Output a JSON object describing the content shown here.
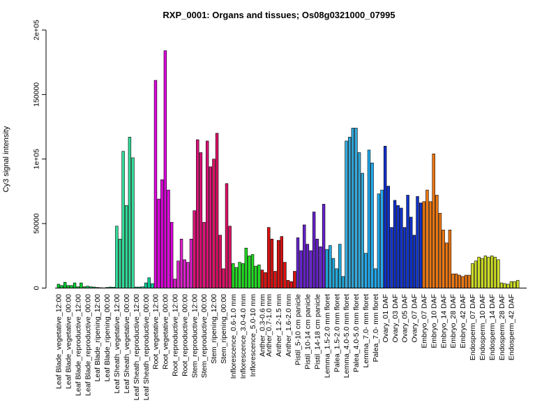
{
  "chart_data": {
    "type": "bar",
    "title": "RXP_0001: Organs and tissues; Os08g0321000_07995",
    "ylabel": "Cy3 signal intensity",
    "xlabel": "",
    "ylim": [
      0,
      200000
    ],
    "yticks": [
      {
        "value": 0,
        "label": "0"
      },
      {
        "value": 50000,
        "label": "50000"
      },
      {
        "value": 100000,
        "label": "1e+05"
      },
      {
        "value": 150000,
        "label": "150000"
      },
      {
        "value": 200000,
        "label": "2e+05"
      }
    ],
    "groups": [
      {
        "color": "#00cc33",
        "values": [
          3000,
          2000,
          4500,
          2000,
          2000,
          4000,
          1000,
          4000,
          1000
        ],
        "labels": [
          "Leaf Blade_vegetative_12:00",
          "",
          "",
          "Leaf Blade_vegetative_00:00",
          "",
          "",
          "Leaf Blade_reproductive_12:00",
          "",
          ""
        ]
      },
      {
        "color": "#00cc66",
        "values": [
          1500,
          1000,
          800,
          500,
          300,
          200,
          500,
          800,
          700
        ],
        "labels": [
          "Leaf Blade_reproductive_00:00",
          "",
          "",
          "Leaf Blade_ripening_12:00",
          "",
          "",
          "Leaf Blade_ripening_00:00",
          "",
          ""
        ]
      },
      {
        "color": "#33dd99",
        "values": [
          48000,
          38000,
          106000,
          64000,
          117000,
          101000
        ],
        "labels": [
          "Leaf Sheath_vegetative_12:00",
          "",
          "",
          "Leaf Sheath_vegetative_00:00",
          "",
          ""
        ]
      },
      {
        "color": "#00cc99",
        "values": [
          800,
          800,
          1000,
          4000,
          8000,
          3500
        ],
        "labels": [
          "Leaf Sheath_reproductive_12:00",
          "",
          "",
          "Leaf Sheath_reproductive_00:00",
          "",
          ""
        ]
      },
      {
        "color": "#dd00dd",
        "values": [
          161000,
          69000,
          84000,
          184000,
          76000,
          51000
        ],
        "labels": [
          "Root_vegetative_12:00",
          "",
          "",
          "Root_vegetative_00:00",
          "",
          ""
        ]
      },
      {
        "color": "#dd22cc",
        "values": [
          7000,
          21000,
          38000,
          22000,
          20000,
          38000
        ],
        "labels": [
          "Root_reproductive_12:00",
          "",
          "",
          "Root_reproductive_00:00",
          "",
          ""
        ]
      },
      {
        "color": "#dd1177",
        "values": [
          60000,
          115000,
          105000,
          51000,
          114000,
          94000
        ],
        "labels": [
          "Stem_reproductive_12:00",
          "",
          "",
          "Stem_reproductive_00:00",
          "",
          ""
        ]
      },
      {
        "color": "#dd1166",
        "values": [
          100000,
          120000,
          41000,
          15000,
          81000,
          48000
        ],
        "labels": [
          "Stem_ripening_12:00",
          "",
          "",
          "Stem_ripening_00:00",
          "",
          ""
        ]
      },
      {
        "color": "#22dd22",
        "values": [
          19000,
          16000,
          20000,
          19000,
          31000,
          25000,
          26000,
          17000,
          18000
        ],
        "labels": [
          "Inflorescence_0.6-1.0 mm",
          "",
          "",
          "Inflorescence_3.0-4.0 mm",
          "",
          "",
          "Inflorescence_5.0-10 mm",
          "",
          ""
        ]
      },
      {
        "color": "#dd1111",
        "values": [
          14000,
          12000,
          47000,
          38000,
          13000,
          37000,
          40000,
          20000,
          6000,
          5000,
          13000
        ],
        "labels": [
          "Anther_0.3-0.6 mm",
          "",
          "Anther_0.7-1.0 mm",
          "",
          "",
          "Anther_1.2-1.5 mm",
          "",
          "",
          "Anther_1.6-2.0 mm",
          "",
          ""
        ]
      },
      {
        "color": "#6622cc",
        "values": [
          39000,
          29000,
          49000,
          34000,
          29000,
          59000,
          38000,
          32000,
          65000
        ],
        "labels": [
          "Pistil_5-10 cm panicle",
          "",
          "",
          "Pistil_10-14 cm panicle",
          "",
          "",
          "Pistil_14-18 cm panicle",
          "",
          ""
        ]
      },
      {
        "color": "#22aadd",
        "values": [
          30000,
          33000,
          23000,
          15000,
          34000,
          9000
        ],
        "labels": [
          "Lemma_1.5-2.0 mm floret",
          "",
          "",
          "Palea_1.5-2.0 mm floret",
          "",
          ""
        ]
      },
      {
        "color": "#33aadd",
        "values": [
          114000,
          117000,
          124000,
          124000,
          105000,
          89000
        ],
        "labels": [
          "Lemma_4.0-5.0 mm floret",
          "",
          "",
          "Palea_4.0-5.0 mm floret",
          "",
          ""
        ]
      },
      {
        "color": "#22aaee",
        "values": [
          27000,
          107000,
          97000,
          15000,
          73000,
          76000
        ],
        "labels": [
          "Lemma_7.0- mm floret",
          "",
          "",
          "Palea_7.0- mm floret",
          "",
          ""
        ]
      },
      {
        "color": "#1133cc",
        "values": [
          110000,
          79000,
          47000,
          68000,
          64000,
          62000,
          47000,
          72000,
          55000,
          41000,
          71000,
          66000
        ],
        "labels": [
          "Ovary_01 DAF",
          "",
          "",
          "Ovary_03 DAF",
          "",
          "",
          "Ovary_05 DAF",
          "",
          "",
          "Ovary_07 DAF",
          "",
          ""
        ]
      },
      {
        "color": "#ee7711",
        "values": [
          67000,
          76000,
          67000,
          104000,
          72000,
          58000,
          45000,
          35000,
          45000,
          11000,
          11000,
          10000,
          9000,
          10000,
          10000
        ],
        "labels": [
          "Embryo_07 DAF",
          "",
          "",
          "Embryo_10 DAF",
          "",
          "",
          "Embryo_14 DAF",
          "",
          "",
          "Embryo_28 DAF",
          "",
          "",
          "Embryo_42 DAF",
          "",
          ""
        ]
      },
      {
        "color": "#ccdd22",
        "values": [
          19000,
          21000,
          24000,
          23000,
          25000,
          24000,
          25000,
          24000,
          22000,
          4000,
          3500,
          3000,
          5000,
          5000,
          6000
        ],
        "labels": [
          "Endosperm_07 DAF",
          "",
          "",
          "Endosperm_10 DAF",
          "",
          "",
          "Endosperm_14 DAF",
          "",
          "",
          "Endosperm_28 DAF",
          "",
          "",
          "Endosperm_42 DAF",
          "",
          ""
        ]
      }
    ]
  }
}
